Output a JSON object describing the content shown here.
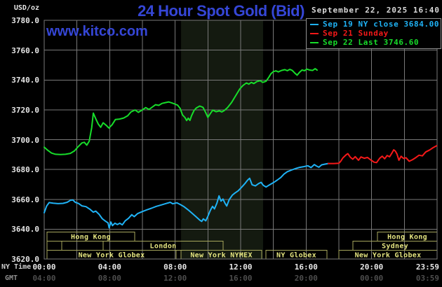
{
  "header": {
    "usd_oz": "USD/oz",
    "title": "24 Hour Spot Gold (Bid)",
    "datetime": "September 22, 2025 16:40",
    "watermark": "www.kitco.com"
  },
  "legend": {
    "items": [
      {
        "series": "sep19",
        "label": "Sep 19 NY close 3684.00",
        "color": "#1fb2f5"
      },
      {
        "series": "sep21",
        "label": "Sep 21 Sunday",
        "color": "#f51919"
      },
      {
        "series": "sep22",
        "label": "Sep 22 Last 3746.60",
        "color": "#17dd2a"
      }
    ]
  },
  "axes": {
    "ny_time_label": "NY Time",
    "gmt_label": "GMT",
    "y_ticks": [
      "3780.0",
      "3760.0",
      "3740.0",
      "3720.0",
      "3700.0",
      "3680.0",
      "3660.0",
      "3640.0",
      "3620.0"
    ],
    "x_ticks": [
      {
        "h": 0,
        "ny": "00:00",
        "gmt": "04:00"
      },
      {
        "h": 4,
        "ny": "04:00",
        "gmt": "08:00"
      },
      {
        "h": 8,
        "ny": "08:00",
        "gmt": "12:00"
      },
      {
        "h": 12,
        "ny": "12:00",
        "gmt": "16:00"
      },
      {
        "h": 16,
        "ny": "16:00",
        "gmt": "20:00"
      },
      {
        "h": 20,
        "ny": "20:00",
        "gmt": "00:00"
      },
      {
        "h": 24,
        "ny": "23:59",
        "gmt": "03:59",
        "align": "right"
      }
    ]
  },
  "colors": {
    "background": "#000000",
    "title_blue": "#3546d6",
    "grid": "#787878",
    "nymex_band": "#141a10",
    "session_border": "#a6a65c",
    "session_text": "#e5e580",
    "axis_text": "#e8e8e8",
    "axis_side_text": "#cfcfcf",
    "gmt_word": "#8f8f8f",
    "gmt_text": "#4e4e4e",
    "date_text": "#dadada",
    "cyan": "#1fb2f5",
    "red": "#f51919",
    "green": "#17dd2a"
  },
  "chart_data": {
    "type": "line",
    "title": "24 Hour Spot Gold (Bid)",
    "xlabel": "NY Time",
    "ylabel": "USD/oz",
    "x_range_hours": [
      0,
      24
    ],
    "ylim": [
      3620,
      3780
    ],
    "grid": {
      "x_step_hours": 2,
      "y_step": 20,
      "on": true
    },
    "legend_position": "top-right",
    "nymex_band": {
      "start": 8.36,
      "end": 13.37
    },
    "sessions": [
      {
        "row": 0,
        "label": "Hong Kong",
        "start": 0.17,
        "end": 5.53
      },
      {
        "row": 0,
        "label": "Hong Kong",
        "start": 20.36,
        "end": 24
      },
      {
        "row": 1,
        "label": "",
        "start": 0.17,
        "end": 1.07
      },
      {
        "row": 1,
        "label": "",
        "start": 1.07,
        "end": 3.6
      },
      {
        "row": 1,
        "label": "London",
        "start": 3.6,
        "end": 10.93
      },
      {
        "row": 1,
        "label": "Sydney",
        "start": 18.86,
        "end": 24
      },
      {
        "row": 2,
        "label": "New York Globex",
        "start": 0.17,
        "end": 8.06
      },
      {
        "row": 2,
        "label": "New York NYMEX",
        "start": 8.36,
        "end": 13.29
      },
      {
        "row": 2,
        "label": "NY Globex",
        "start": 13.54,
        "end": 17.27
      },
      {
        "row": 2,
        "label": "New York Globex",
        "start": 18.0,
        "end": 24
      }
    ],
    "series": [
      {
        "name": "Sep 19 NY close",
        "close": 3684.0,
        "color": "#1fb2f5",
        "points": [
          [
            0,
            3651
          ],
          [
            0.15,
            3655.5
          ],
          [
            0.3,
            3657.8
          ],
          [
            0.55,
            3657.4
          ],
          [
            0.85,
            3657.1
          ],
          [
            1.15,
            3657.3
          ],
          [
            1.4,
            3658
          ],
          [
            1.6,
            3659.3
          ],
          [
            1.75,
            3659.6
          ],
          [
            1.9,
            3658
          ],
          [
            2.1,
            3657.2
          ],
          [
            2.3,
            3655.6
          ],
          [
            2.55,
            3655.1
          ],
          [
            2.8,
            3653.3
          ],
          [
            3,
            3651.4
          ],
          [
            3.15,
            3652.1
          ],
          [
            3.35,
            3650
          ],
          [
            3.55,
            3647
          ],
          [
            3.75,
            3645.3
          ],
          [
            3.9,
            3644.2
          ],
          [
            3.97,
            3640.9
          ],
          [
            4.07,
            3644.8
          ],
          [
            4.17,
            3642.4
          ],
          [
            4.32,
            3644
          ],
          [
            4.47,
            3643.1
          ],
          [
            4.62,
            3644
          ],
          [
            4.77,
            3642.9
          ],
          [
            4.95,
            3645.6
          ],
          [
            5.15,
            3647.3
          ],
          [
            5.35,
            3649.7
          ],
          [
            5.5,
            3648.4
          ],
          [
            5.7,
            3650.4
          ],
          [
            5.95,
            3651.6
          ],
          [
            6.25,
            3652.9
          ],
          [
            6.55,
            3654
          ],
          [
            6.85,
            3655.3
          ],
          [
            7.15,
            3656.2
          ],
          [
            7.45,
            3657.2
          ],
          [
            7.7,
            3658
          ],
          [
            7.85,
            3657
          ],
          [
            8.1,
            3657.7
          ],
          [
            8.3,
            3656.6
          ],
          [
            8.55,
            3655
          ],
          [
            8.8,
            3652.9
          ],
          [
            9.05,
            3650.5
          ],
          [
            9.3,
            3648.1
          ],
          [
            9.5,
            3646.1
          ],
          [
            9.62,
            3645.2
          ],
          [
            9.72,
            3646.9
          ],
          [
            9.87,
            3645.6
          ],
          [
            10,
            3648.6
          ],
          [
            10.15,
            3652.6
          ],
          [
            10.28,
            3655.3
          ],
          [
            10.4,
            3653.6
          ],
          [
            10.55,
            3657.5
          ],
          [
            10.68,
            3662.3
          ],
          [
            10.8,
            3658.8
          ],
          [
            10.92,
            3660.2
          ],
          [
            11.05,
            3657.3
          ],
          [
            11.15,
            3655.5
          ],
          [
            11.3,
            3659.8
          ],
          [
            11.5,
            3662.9
          ],
          [
            11.65,
            3664.2
          ],
          [
            11.85,
            3665.7
          ],
          [
            12.05,
            3668
          ],
          [
            12.25,
            3670.4
          ],
          [
            12.42,
            3672.8
          ],
          [
            12.55,
            3674.1
          ],
          [
            12.7,
            3669.8
          ],
          [
            12.9,
            3669
          ],
          [
            13.1,
            3670.6
          ],
          [
            13.25,
            3671.4
          ],
          [
            13.38,
            3669.4
          ],
          [
            13.55,
            3668.3
          ],
          [
            13.78,
            3669.8
          ],
          [
            14,
            3671.2
          ],
          [
            14.25,
            3673
          ],
          [
            14.45,
            3674.6
          ],
          [
            14.65,
            3676.9
          ],
          [
            14.85,
            3678.5
          ],
          [
            15.1,
            3679.6
          ],
          [
            15.35,
            3680.6
          ],
          [
            15.6,
            3681.4
          ],
          [
            15.85,
            3681.9
          ],
          [
            16.1,
            3682.5
          ],
          [
            16.3,
            3681.3
          ],
          [
            16.5,
            3683.3
          ],
          [
            16.62,
            3682.4
          ],
          [
            16.78,
            3681.5
          ],
          [
            16.95,
            3683.1
          ],
          [
            17.15,
            3683.6
          ],
          [
            17.35,
            3684
          ]
        ]
      },
      {
        "name": "Sep 21 Sunday",
        "color": "#f51919",
        "points": [
          [
            17.35,
            3684
          ],
          [
            17.7,
            3684
          ],
          [
            18,
            3684.2
          ],
          [
            18.1,
            3685.3
          ],
          [
            18.25,
            3687.8
          ],
          [
            18.45,
            3689.9
          ],
          [
            18.55,
            3690.6
          ],
          [
            18.7,
            3688.2
          ],
          [
            18.85,
            3686.9
          ],
          [
            19,
            3688.6
          ],
          [
            19.2,
            3686.2
          ],
          [
            19.35,
            3688.4
          ],
          [
            19.55,
            3687.5
          ],
          [
            19.75,
            3688.1
          ],
          [
            19.95,
            3686.4
          ],
          [
            20.15,
            3684.9
          ],
          [
            20.3,
            3684.6
          ],
          [
            20.5,
            3687.6
          ],
          [
            20.65,
            3688.9
          ],
          [
            20.8,
            3687.2
          ],
          [
            20.95,
            3689.4
          ],
          [
            21.1,
            3688.5
          ],
          [
            21.25,
            3691.2
          ],
          [
            21.35,
            3693.2
          ],
          [
            21.45,
            3692.3
          ],
          [
            21.55,
            3690.4
          ],
          [
            21.67,
            3686.2
          ],
          [
            21.8,
            3688.9
          ],
          [
            21.95,
            3687.4
          ],
          [
            22.1,
            3687.9
          ],
          [
            22.3,
            3685.5
          ],
          [
            22.5,
            3686.6
          ],
          [
            22.7,
            3688
          ],
          [
            22.9,
            3689.6
          ],
          [
            23.1,
            3689.1
          ],
          [
            23.3,
            3691.7
          ],
          [
            23.55,
            3693.1
          ],
          [
            23.75,
            3694.6
          ],
          [
            23.97,
            3695.9
          ]
        ]
      },
      {
        "name": "Sep 22 Last",
        "last": 3746.6,
        "color": "#17dd2a",
        "points": [
          [
            0,
            3695
          ],
          [
            0.2,
            3693
          ],
          [
            0.45,
            3691
          ],
          [
            0.7,
            3690.2
          ],
          [
            1,
            3690
          ],
          [
            1.3,
            3690.2
          ],
          [
            1.6,
            3690.8
          ],
          [
            1.85,
            3692.5
          ],
          [
            2.05,
            3695
          ],
          [
            2.3,
            3697.8
          ],
          [
            2.45,
            3698.2
          ],
          [
            2.6,
            3696.3
          ],
          [
            2.75,
            3699
          ],
          [
            2.9,
            3708
          ],
          [
            3,
            3717.8
          ],
          [
            3.15,
            3714
          ],
          [
            3.3,
            3710.5
          ],
          [
            3.45,
            3708.3
          ],
          [
            3.6,
            3711.3
          ],
          [
            3.8,
            3709.5
          ],
          [
            3.95,
            3707.8
          ],
          [
            4.15,
            3710
          ],
          [
            4.35,
            3713.5
          ],
          [
            4.6,
            3713.8
          ],
          [
            4.85,
            3714.5
          ],
          [
            5.1,
            3716
          ],
          [
            5.3,
            3718.6
          ],
          [
            5.55,
            3719.9
          ],
          [
            5.75,
            3718.3
          ],
          [
            6,
            3720
          ],
          [
            6.2,
            3721.5
          ],
          [
            6.4,
            3720.2
          ],
          [
            6.6,
            3721.8
          ],
          [
            6.8,
            3723.4
          ],
          [
            7,
            3723
          ],
          [
            7.2,
            3724.3
          ],
          [
            7.4,
            3724.8
          ],
          [
            7.6,
            3725.3
          ],
          [
            7.8,
            3724.6
          ],
          [
            8,
            3723.8
          ],
          [
            8.15,
            3723.1
          ],
          [
            8.3,
            3721
          ],
          [
            8.45,
            3716.5
          ],
          [
            8.6,
            3714.8
          ],
          [
            8.7,
            3712.8
          ],
          [
            8.8,
            3714.4
          ],
          [
            8.9,
            3712.9
          ],
          [
            9,
            3716
          ],
          [
            9.15,
            3719.5
          ],
          [
            9.3,
            3721.3
          ],
          [
            9.5,
            3722.5
          ],
          [
            9.7,
            3721.7
          ],
          [
            9.85,
            3718.5
          ],
          [
            10,
            3714.9
          ],
          [
            10.15,
            3717.5
          ],
          [
            10.3,
            3719.8
          ],
          [
            10.5,
            3718.7
          ],
          [
            10.7,
            3719.3
          ],
          [
            10.85,
            3718.6
          ],
          [
            11,
            3719.5
          ],
          [
            11.2,
            3721.5
          ],
          [
            11.45,
            3725
          ],
          [
            11.7,
            3729.5
          ],
          [
            11.95,
            3734
          ],
          [
            12.15,
            3736.4
          ],
          [
            12.35,
            3738
          ],
          [
            12.5,
            3737.2
          ],
          [
            12.65,
            3738.4
          ],
          [
            12.8,
            3737.6
          ],
          [
            13,
            3739
          ],
          [
            13.2,
            3739.5
          ],
          [
            13.35,
            3738.4
          ],
          [
            13.55,
            3739.2
          ],
          [
            13.7,
            3741.5
          ],
          [
            13.85,
            3744.2
          ],
          [
            14,
            3745.6
          ],
          [
            14.15,
            3746.1
          ],
          [
            14.3,
            3745.4
          ],
          [
            14.5,
            3746.4
          ],
          [
            14.7,
            3746.9
          ],
          [
            14.85,
            3746.2
          ],
          [
            15,
            3747.1
          ],
          [
            15.15,
            3746.4
          ],
          [
            15.3,
            3744.7
          ],
          [
            15.45,
            3743.2
          ],
          [
            15.6,
            3745.2
          ],
          [
            15.75,
            3746.7
          ],
          [
            15.9,
            3746.2
          ],
          [
            16.05,
            3747.3
          ],
          [
            16.2,
            3746.7
          ],
          [
            16.4,
            3746.4
          ],
          [
            16.55,
            3747.6
          ],
          [
            16.67,
            3746.6
          ]
        ]
      }
    ]
  }
}
